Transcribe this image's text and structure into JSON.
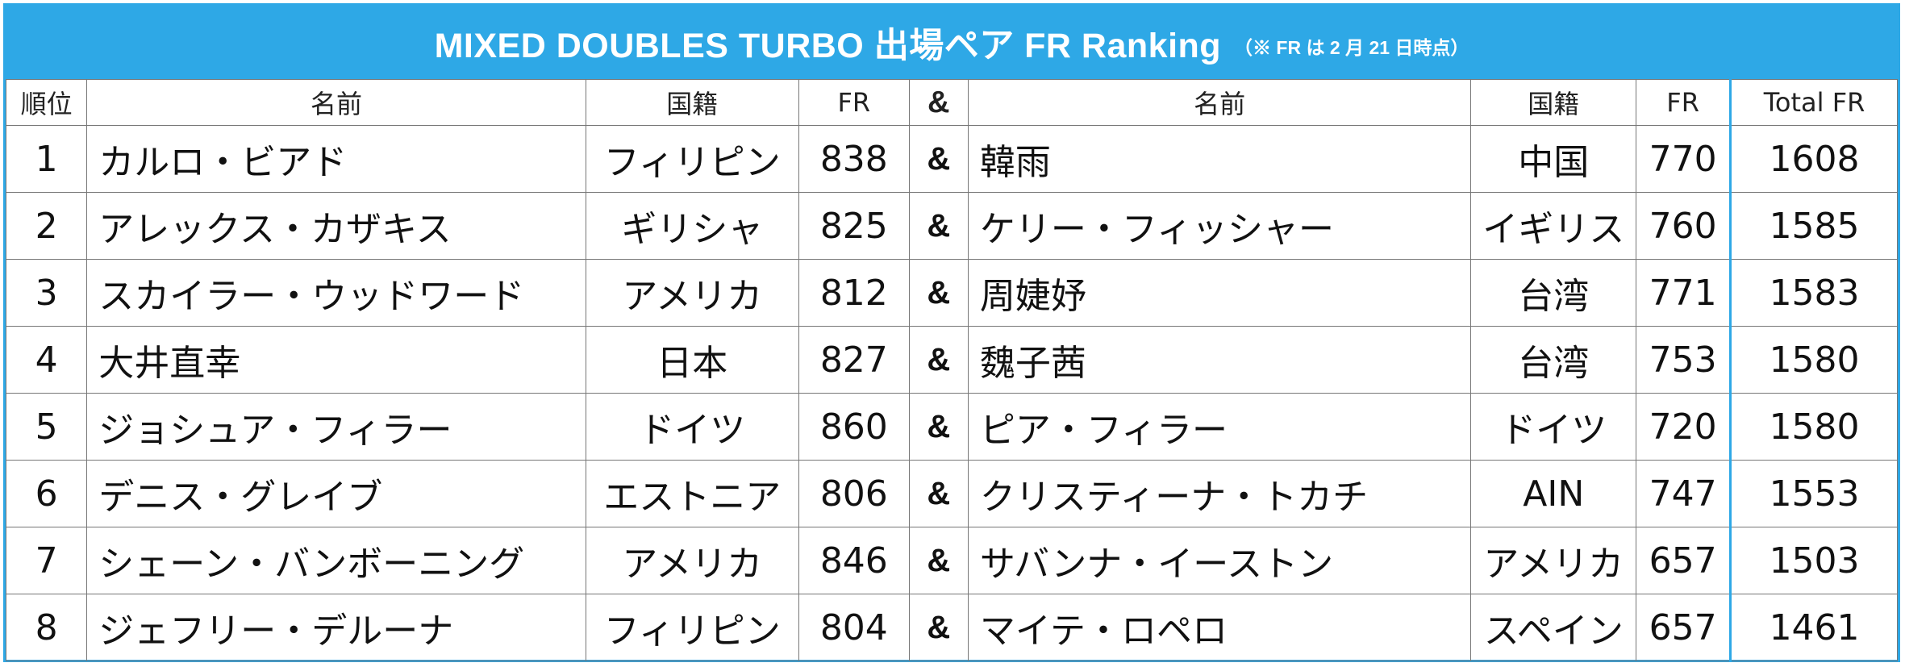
{
  "title": {
    "main": "MIXED DOUBLES TURBO 出場ペア FR Ranking",
    "note": "（※ FR は 2 月 21 日時点）"
  },
  "header": {
    "rank": "順位",
    "name1": "名前",
    "country1": "国籍",
    "fr1": "FR",
    "amp": "&",
    "name2": "名前",
    "country2": "国籍",
    "fr2": "FR",
    "total": "Total FR"
  },
  "rows": [
    {
      "rank": "1",
      "name1": "カルロ・ビアド",
      "country1": "フィリピン",
      "fr1": "838",
      "amp": "&",
      "name2": "韓雨",
      "country2": "中国",
      "fr2": "770",
      "total": "1608"
    },
    {
      "rank": "2",
      "name1": "アレックス・カザキス",
      "country1": "ギリシャ",
      "fr1": "825",
      "amp": "&",
      "name2": "ケリー・フィッシャー",
      "country2": "イギリス",
      "fr2": "760",
      "total": "1585"
    },
    {
      "rank": "3",
      "name1": "スカイラー・ウッドワード",
      "country1": "アメリカ",
      "fr1": "812",
      "amp": "&",
      "name2": "周婕妤",
      "country2": "台湾",
      "fr2": "771",
      "total": "1583"
    },
    {
      "rank": "4",
      "name1": "大井直幸",
      "country1": "日本",
      "fr1": "827",
      "amp": "&",
      "name2": "魏子茜",
      "country2": "台湾",
      "fr2": "753",
      "total": "1580"
    },
    {
      "rank": "5",
      "name1": "ジョシュア・フィラー",
      "country1": "ドイツ",
      "fr1": "860",
      "amp": "&",
      "name2": "ピア・フィラー",
      "country2": "ドイツ",
      "fr2": "720",
      "total": "1580"
    },
    {
      "rank": "6",
      "name1": "デニス・グレイブ",
      "country1": "エストニア",
      "fr1": "806",
      "amp": "&",
      "name2": "クリスティーナ・トカチ",
      "country2": "AIN",
      "fr2": "747",
      "total": "1553"
    },
    {
      "rank": "7",
      "name1": "シェーン・バンボーニング",
      "country1": "アメリカ",
      "fr1": "846",
      "amp": "&",
      "name2": "サバンナ・イーストン",
      "country2": "アメリカ",
      "fr2": "657",
      "total": "1503"
    },
    {
      "rank": "8",
      "name1": "ジェフリー・デルーナ",
      "country1": "フィリピン",
      "fr1": "804",
      "amp": "&",
      "name2": "マイテ・ロペロ",
      "country2": "スペイン",
      "fr2": "657",
      "total": "1461"
    }
  ],
  "colors": {
    "accent": "#2ea8e6"
  }
}
